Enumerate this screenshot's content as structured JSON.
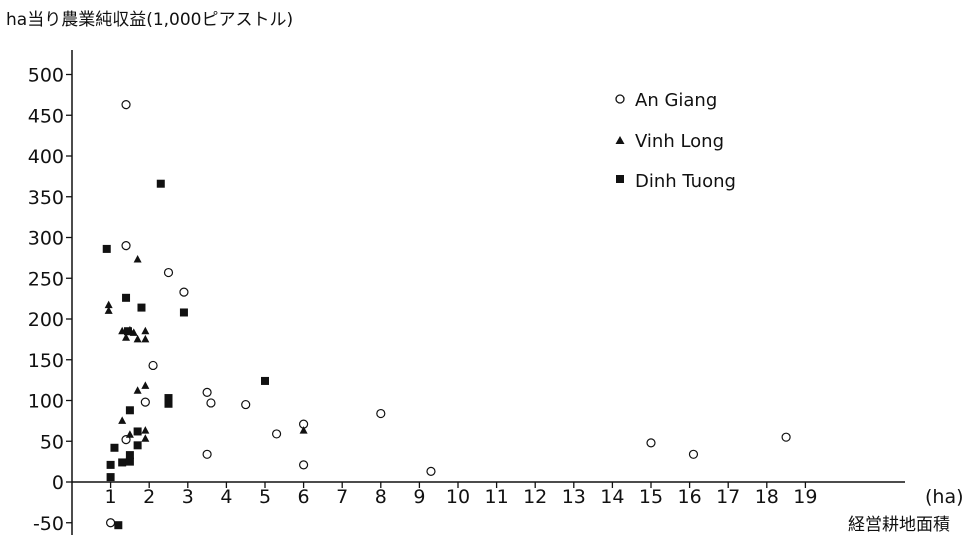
{
  "chart_data": {
    "type": "scatter",
    "ylabel": "ha当り農業純収益(1,000ピアストル)",
    "xlabel": "経営耕地面積",
    "x_unit": "(ha)",
    "xlim": [
      0,
      20.5
    ],
    "ylim": [
      -60,
      520
    ],
    "x_ticks": [
      1,
      2,
      3,
      4,
      5,
      6,
      7,
      8,
      9,
      10,
      11,
      12,
      13,
      14,
      15,
      16,
      17,
      18,
      19
    ],
    "y_ticks": [
      -50,
      0,
      50,
      100,
      150,
      200,
      250,
      300,
      350,
      400,
      450,
      500
    ],
    "legend_position": "top-right",
    "series": [
      {
        "name": "An Giang",
        "marker": "circle-open",
        "points": [
          {
            "x": 1.4,
            "y": 463
          },
          {
            "x": 1.4,
            "y": 290
          },
          {
            "x": 2.5,
            "y": 257
          },
          {
            "x": 2.9,
            "y": 233
          },
          {
            "x": 2.1,
            "y": 143
          },
          {
            "x": 1.9,
            "y": 98
          },
          {
            "x": 1.4,
            "y": 52
          },
          {
            "x": 3.5,
            "y": 110
          },
          {
            "x": 3.6,
            "y": 97
          },
          {
            "x": 3.5,
            "y": 34
          },
          {
            "x": 4.5,
            "y": 95
          },
          {
            "x": 5.3,
            "y": 59
          },
          {
            "x": 6.0,
            "y": 71
          },
          {
            "x": 6.0,
            "y": 21
          },
          {
            "x": 8.0,
            "y": 84
          },
          {
            "x": 9.3,
            "y": 13
          },
          {
            "x": 15.0,
            "y": 48
          },
          {
            "x": 16.1,
            "y": 34
          },
          {
            "x": 18.5,
            "y": 55
          },
          {
            "x": 1.0,
            "y": -50
          }
        ]
      },
      {
        "name": "Vinh Long",
        "marker": "triangle",
        "points": [
          {
            "x": 0.95,
            "y": 217
          },
          {
            "x": 0.95,
            "y": 210
          },
          {
            "x": 1.7,
            "y": 273
          },
          {
            "x": 1.3,
            "y": 185
          },
          {
            "x": 1.4,
            "y": 177
          },
          {
            "x": 1.5,
            "y": 186
          },
          {
            "x": 1.6,
            "y": 183
          },
          {
            "x": 1.7,
            "y": 175
          },
          {
            "x": 1.9,
            "y": 185
          },
          {
            "x": 1.9,
            "y": 175
          },
          {
            "x": 1.9,
            "y": 118
          },
          {
            "x": 1.7,
            "y": 112
          },
          {
            "x": 1.3,
            "y": 75
          },
          {
            "x": 1.5,
            "y": 58
          },
          {
            "x": 1.9,
            "y": 63
          },
          {
            "x": 1.9,
            "y": 53
          },
          {
            "x": 6.0,
            "y": 63
          }
        ]
      },
      {
        "name": "Dinh Tuong",
        "marker": "square",
        "points": [
          {
            "x": 0.9,
            "y": 286
          },
          {
            "x": 2.3,
            "y": 366
          },
          {
            "x": 1.4,
            "y": 226
          },
          {
            "x": 1.8,
            "y": 214
          },
          {
            "x": 2.9,
            "y": 208
          },
          {
            "x": 1.45,
            "y": 185
          },
          {
            "x": 2.5,
            "y": 103
          },
          {
            "x": 2.5,
            "y": 96
          },
          {
            "x": 5.0,
            "y": 124
          },
          {
            "x": 1.5,
            "y": 88
          },
          {
            "x": 1.7,
            "y": 62
          },
          {
            "x": 1.1,
            "y": 42
          },
          {
            "x": 1.3,
            "y": 24
          },
          {
            "x": 1.5,
            "y": 25
          },
          {
            "x": 1.5,
            "y": 33
          },
          {
            "x": 1.7,
            "y": 45
          },
          {
            "x": 1.0,
            "y": 21
          },
          {
            "x": 1.0,
            "y": 6
          },
          {
            "x": 1.2,
            "y": -53
          }
        ]
      }
    ]
  }
}
